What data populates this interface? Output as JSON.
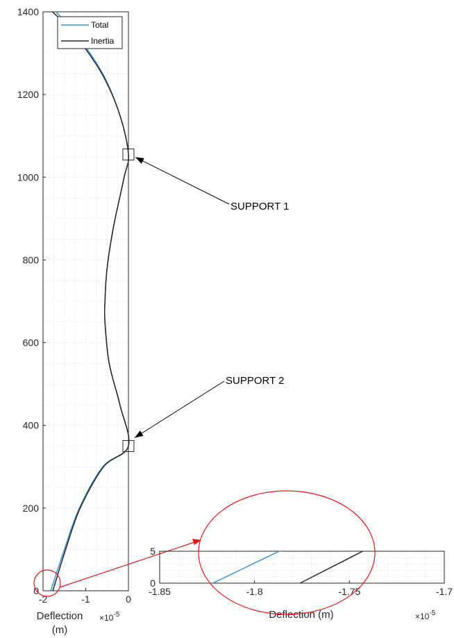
{
  "chart_data": [
    {
      "type": "line",
      "xlabel": "Deflection",
      "xlabel_unit": "(m)",
      "x_exponent_label": "×10",
      "x_exponent_power": "-5",
      "xlim": [
        -2,
        0
      ],
      "ylim": [
        0,
        1400
      ],
      "x_ticks": [
        -2,
        -1,
        0
      ],
      "x_tick_labels": [
        "-2",
        "-1",
        "0"
      ],
      "y_ticks": [
        0,
        200,
        400,
        600,
        800,
        1000,
        1200,
        1400
      ],
      "y_tick_labels": [
        "0",
        "200",
        "400",
        "600",
        "800",
        "1000",
        "1200",
        "1400"
      ],
      "grid": true,
      "legend_position": "top-right",
      "series": [
        {
          "name": "Total",
          "color": "#3a8fd0",
          "points": [
            [
              -1.82,
              0
            ],
            [
              -1.5,
              100
            ],
            [
              -1.15,
              200
            ],
            [
              -0.6,
              300
            ],
            [
              0,
              350
            ],
            [
              -0.2,
              450
            ],
            [
              -0.45,
              550
            ],
            [
              -0.55,
              650
            ],
            [
              -0.55,
              700
            ],
            [
              -0.5,
              780
            ],
            [
              -0.35,
              880
            ],
            [
              -0.1,
              1000
            ],
            [
              0,
              1055
            ],
            [
              -0.2,
              1150
            ],
            [
              -0.6,
              1250
            ],
            [
              -1.25,
              1350
            ],
            [
              -1.7,
              1400
            ]
          ]
        },
        {
          "name": "Inertia",
          "color": "#262626",
          "points": [
            [
              -1.77,
              0
            ],
            [
              -1.47,
              100
            ],
            [
              -1.13,
              200
            ],
            [
              -0.58,
              300
            ],
            [
              0,
              350
            ],
            [
              -0.2,
              450
            ],
            [
              -0.45,
              550
            ],
            [
              -0.55,
              650
            ],
            [
              -0.55,
              700
            ],
            [
              -0.5,
              780
            ],
            [
              -0.35,
              880
            ],
            [
              -0.1,
              1000
            ],
            [
              0,
              1055
            ],
            [
              -0.2,
              1150
            ],
            [
              -0.62,
              1250
            ],
            [
              -1.3,
              1350
            ],
            [
              -1.78,
              1400
            ]
          ]
        }
      ],
      "annotations": [
        {
          "text": "SUPPORT 1",
          "x": 0,
          "y": 1055
        },
        {
          "text": "SUPPORT 2",
          "x": 0,
          "y": 350
        }
      ],
      "markers": [
        {
          "x": 0,
          "y": 1055
        },
        {
          "x": 0,
          "y": 350
        }
      ]
    },
    {
      "type": "line",
      "inset": true,
      "xlabel": "Deflection (m)",
      "x_exponent_label": "×10",
      "x_exponent_power": "-5",
      "xlim": [
        -1.85,
        -1.7
      ],
      "ylim": [
        0,
        5
      ],
      "x_ticks": [
        -1.85,
        -1.8,
        -1.75,
        -1.7
      ],
      "x_tick_labels": [
        "-1.85",
        "-1.8",
        "-1.75",
        "-1.7"
      ],
      "y_ticks": [
        0,
        5
      ],
      "y_tick_labels": [
        "0",
        "5"
      ],
      "grid": true,
      "series": [
        {
          "name": "Total",
          "color": "#3a8fd0",
          "points": [
            [
              -1.822,
              0
            ],
            [
              -1.787,
              5
            ]
          ]
        },
        {
          "name": "Inertia",
          "color": "#262626",
          "points": [
            [
              -1.776,
              0
            ],
            [
              -1.743,
              5
            ]
          ]
        }
      ]
    }
  ],
  "colors": {
    "highlight": "#e8161b"
  }
}
